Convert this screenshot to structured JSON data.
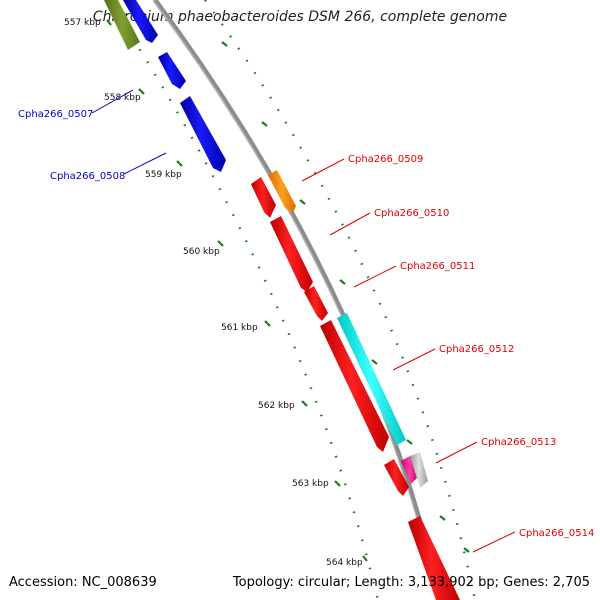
{
  "title": "Chlorobium phaeobacteroides DSM 266, complete genome",
  "footer": {
    "accession": "Accession: NC_008639",
    "summary": "Topology: circular; Length: 3,133,902 bp; Genes: 2,705"
  },
  "colors": {
    "backbone": "#888888",
    "tick_marks": "#1e7d1e",
    "reverse_label": "#0000cc",
    "forward_label": "#e00000"
  },
  "ticks": [
    {
      "label": "557 kbp"
    },
    {
      "label": "558 kbp"
    },
    {
      "label": "559 kbp"
    },
    {
      "label": "560 kbp"
    },
    {
      "label": "561 kbp"
    },
    {
      "label": "562 kbp"
    },
    {
      "label": "563 kbp"
    },
    {
      "label": "564 kbp"
    }
  ],
  "genes": [
    {
      "id": "Cpha266_0507",
      "strand": "reverse",
      "color": "#0000cc"
    },
    {
      "id": "Cpha266_0508",
      "strand": "reverse",
      "color": "#0000cc"
    },
    {
      "id": "Cpha266_0509",
      "strand": "forward",
      "color": "#e00000"
    },
    {
      "id": "Cpha266_0510",
      "strand": "forward",
      "color": "#e00000"
    },
    {
      "id": "Cpha266_0511",
      "strand": "forward",
      "color": "#e00000"
    },
    {
      "id": "Cpha266_0512",
      "strand": "forward",
      "color": "#e00000"
    },
    {
      "id": "Cpha266_0513",
      "strand": "forward",
      "color": "#e00000"
    },
    {
      "id": "Cpha266_0514",
      "strand": "forward",
      "color": "#e00000"
    }
  ]
}
